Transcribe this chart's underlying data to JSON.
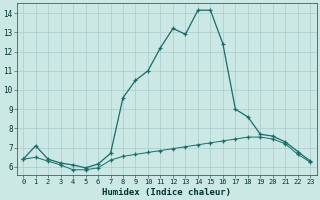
{
  "xlabel": "Humidex (Indice chaleur)",
  "bg_color": "#cce8e4",
  "grid_color": "#aacccc",
  "line_color": "#1a6b6b",
  "xlim": [
    -0.5,
    23.5
  ],
  "ylim": [
    5.6,
    14.5
  ],
  "yticks": [
    6,
    7,
    8,
    9,
    10,
    11,
    12,
    13,
    14
  ],
  "xticks": [
    0,
    1,
    2,
    3,
    4,
    5,
    6,
    7,
    8,
    9,
    10,
    11,
    12,
    13,
    14,
    15,
    16,
    17,
    18,
    19,
    20,
    21,
    22,
    23
  ],
  "curve1_x": [
    0,
    1,
    2,
    3,
    4,
    5,
    6,
    7,
    8,
    9,
    10,
    11,
    12,
    13,
    14,
    15,
    16,
    17,
    18,
    19,
    20,
    21,
    22,
    23
  ],
  "curve1_y": [
    6.4,
    7.1,
    6.4,
    6.2,
    6.1,
    5.95,
    6.15,
    6.7,
    9.6,
    10.5,
    11.0,
    12.2,
    13.2,
    12.9,
    14.15,
    14.15,
    12.4,
    9.0,
    8.6,
    7.7,
    7.6,
    7.3,
    6.8,
    6.3
  ],
  "curve2_x": [
    0,
    1,
    2,
    3,
    4,
    5,
    6,
    7,
    8,
    9,
    10,
    11,
    12,
    13,
    14,
    15,
    16,
    17,
    18,
    19,
    20,
    21,
    22,
    23
  ],
  "curve2_y": [
    6.4,
    6.5,
    6.3,
    6.1,
    5.85,
    5.85,
    5.95,
    6.35,
    6.55,
    6.65,
    6.75,
    6.85,
    6.95,
    7.05,
    7.15,
    7.25,
    7.35,
    7.45,
    7.55,
    7.55,
    7.45,
    7.2,
    6.65,
    6.25
  ]
}
